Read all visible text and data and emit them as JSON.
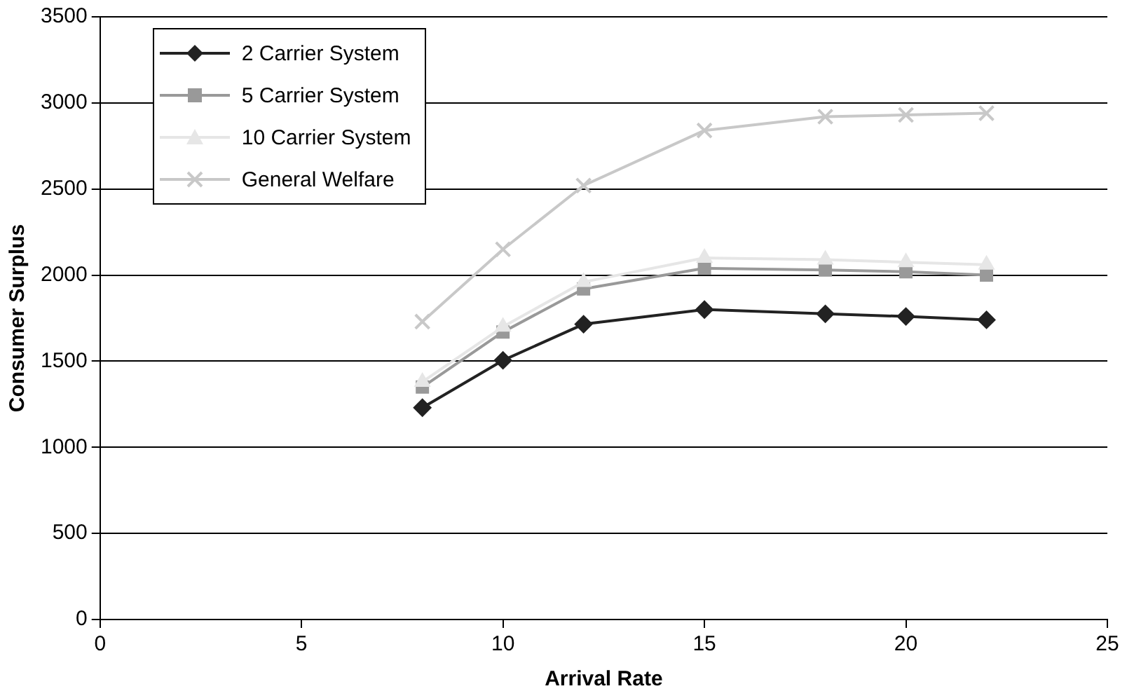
{
  "chart_data": {
    "type": "line",
    "xlabel": "Arrival Rate",
    "ylabel": "Consumer Surplus",
    "x": [
      8,
      10,
      12,
      15,
      18,
      20,
      22
    ],
    "xlim": [
      0,
      25
    ],
    "xticks": [
      0,
      5,
      10,
      15,
      20,
      25
    ],
    "ylim": [
      0,
      3500
    ],
    "yticks": [
      0,
      500,
      1000,
      1500,
      2000,
      2500,
      3000,
      3500
    ],
    "grid": "y",
    "legend": "top left",
    "series": [
      {
        "name": "2 Carrier System",
        "color": "#222222",
        "marker": "diamond",
        "values": [
          1230,
          1505,
          1715,
          1800,
          1775,
          1760,
          1740
        ]
      },
      {
        "name": "5 Carrier System",
        "color": "#999999",
        "marker": "square",
        "values": [
          1350,
          1670,
          1920,
          2040,
          2030,
          2020,
          2000
        ]
      },
      {
        "name": "10 Carrier System",
        "color": "#e6e6e6",
        "marker": "triangle",
        "values": [
          1380,
          1700,
          1960,
          2100,
          2090,
          2075,
          2060
        ]
      },
      {
        "name": "General Welfare",
        "color": "#c8c8c8",
        "marker": "cross",
        "values": [
          1730,
          2150,
          2520,
          2840,
          2920,
          2930,
          2940
        ]
      }
    ]
  }
}
